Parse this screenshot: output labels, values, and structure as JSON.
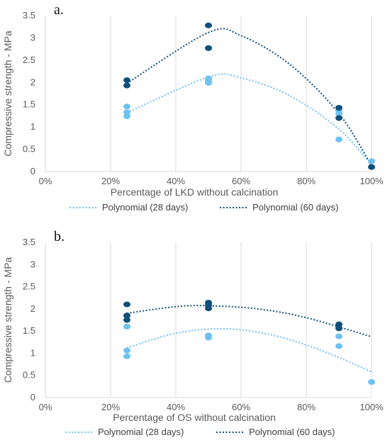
{
  "chart_data": [
    {
      "type": "scatter",
      "panel_label": "a.",
      "xlabel": "Percentage of LKD without calcination",
      "ylabel": "Compressive strength - MPa",
      "xlim": [
        0,
        100
      ],
      "ylim": [
        0,
        3.5
      ],
      "x_ticks": [
        "0%",
        "20%",
        "40%",
        "60%",
        "80%",
        "100%"
      ],
      "y_ticks": [
        "0",
        "0.5",
        "1",
        "1.5",
        "2",
        "2.5",
        "3",
        "3.5"
      ],
      "grid": "vertical",
      "legend_position": "bottom",
      "series": [
        {
          "name": "28 days",
          "color": "#6EC1F0",
          "points": [
            [
              25,
              1.46
            ],
            [
              25,
              1.33
            ],
            [
              25,
              1.24
            ],
            [
              50,
              2.09
            ],
            [
              50,
              2.04
            ],
            [
              50,
              1.99
            ],
            [
              90,
              1.37
            ],
            [
              90,
              1.3
            ],
            [
              90,
              0.72
            ],
            [
              100,
              0.23
            ],
            [
              100,
              0.1
            ]
          ],
          "trend_label": "Polynomial (28 days)",
          "trend": [
            [
              25,
              1.32
            ],
            [
              50,
              2.12
            ],
            [
              60,
              2.1
            ],
            [
              75,
              1.7
            ],
            [
              90,
              0.95
            ],
            [
              100,
              0.15
            ]
          ]
        },
        {
          "name": "60 days",
          "color": "#0F4F78",
          "points": [
            [
              25,
              2.05
            ],
            [
              25,
              1.93
            ],
            [
              50,
              3.28
            ],
            [
              50,
              2.77
            ],
            [
              90,
              1.43
            ],
            [
              90,
              1.2
            ],
            [
              100,
              0.1
            ]
          ],
          "trend_label": "Polynomial (60 days)",
          "trend": [
            [
              25,
              1.98
            ],
            [
              50,
              3.12
            ],
            [
              60,
              3.05
            ],
            [
              75,
              2.4
            ],
            [
              90,
              1.3
            ],
            [
              100,
              0.13
            ]
          ]
        }
      ]
    },
    {
      "type": "scatter",
      "panel_label": "b.",
      "xlabel": "Percentage of OS without calcination",
      "ylabel": "Compressive strength - MPa",
      "xlim": [
        0,
        100
      ],
      "ylim": [
        0,
        3.5
      ],
      "x_ticks": [
        "0%",
        "20%",
        "40%",
        "60%",
        "80%",
        "100%"
      ],
      "y_ticks": [
        "0",
        "0.5",
        "1",
        "1.5",
        "2",
        "2.5",
        "3",
        "3.5"
      ],
      "grid": "vertical",
      "legend_position": "bottom",
      "series": [
        {
          "name": "28 days",
          "color": "#6EC1F0",
          "points": [
            [
              25,
              1.6
            ],
            [
              25,
              1.06
            ],
            [
              25,
              0.93
            ],
            [
              50,
              1.4
            ],
            [
              50,
              1.35
            ],
            [
              90,
              1.38
            ],
            [
              90,
              1.16
            ],
            [
              100,
              0.35
            ]
          ],
          "trend_label": "Polynomial (28 days)",
          "trend": [
            [
              25,
              1.12
            ],
            [
              40,
              1.45
            ],
            [
              55,
              1.55
            ],
            [
              70,
              1.4
            ],
            [
              85,
              1.05
            ],
            [
              100,
              0.58
            ]
          ]
        },
        {
          "name": "60 days",
          "color": "#0F4F78",
          "points": [
            [
              25,
              2.1
            ],
            [
              25,
              1.85
            ],
            [
              25,
              1.75
            ],
            [
              50,
              2.14
            ],
            [
              50,
              2.08
            ],
            [
              50,
              2.01
            ],
            [
              90,
              1.65
            ],
            [
              90,
              1.56
            ]
          ],
          "trend_label": "Polynomial (60 days)",
          "trend": [
            [
              25,
              1.9
            ],
            [
              40,
              2.05
            ],
            [
              50,
              2.07
            ],
            [
              65,
              2.0
            ],
            [
              80,
              1.8
            ],
            [
              100,
              1.37
            ]
          ]
        }
      ]
    }
  ]
}
